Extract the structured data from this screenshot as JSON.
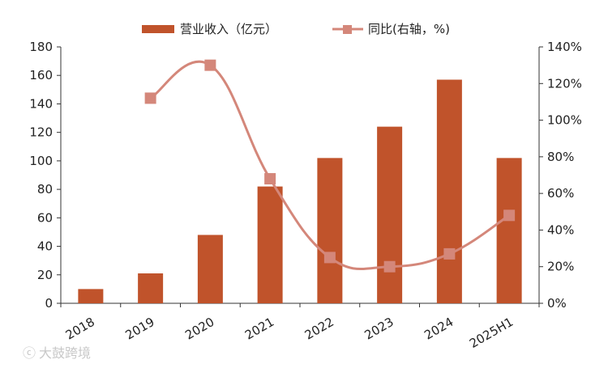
{
  "chart_data": {
    "type": "bar",
    "categories": [
      "2018",
      "2019",
      "2020",
      "2021",
      "2022",
      "2023",
      "2024",
      "2025H1"
    ],
    "series": [
      {
        "name": "营业收入（亿元）",
        "type": "bar",
        "axis": "left",
        "color": "#c0532b",
        "values": [
          10,
          21,
          48,
          82,
          102,
          124,
          157,
          102
        ]
      },
      {
        "name": "同比(右轴，%)",
        "type": "line",
        "axis": "right",
        "color": "#d4877a",
        "values": [
          null,
          112,
          130,
          68,
          25,
          20,
          27,
          48
        ]
      }
    ],
    "y_left": {
      "min": 0,
      "max": 180,
      "step": 20,
      "ticks": [
        "0",
        "20",
        "40",
        "60",
        "80",
        "100",
        "120",
        "140",
        "160",
        "180"
      ]
    },
    "y_right": {
      "min": 0,
      "max": 140,
      "step": 20,
      "ticks": [
        "0%",
        "20%",
        "40%",
        "60%",
        "80%",
        "100%",
        "120%",
        "140%"
      ]
    },
    "legend_position": "top-center",
    "grid": false
  },
  "watermark": "大鼓跨境"
}
